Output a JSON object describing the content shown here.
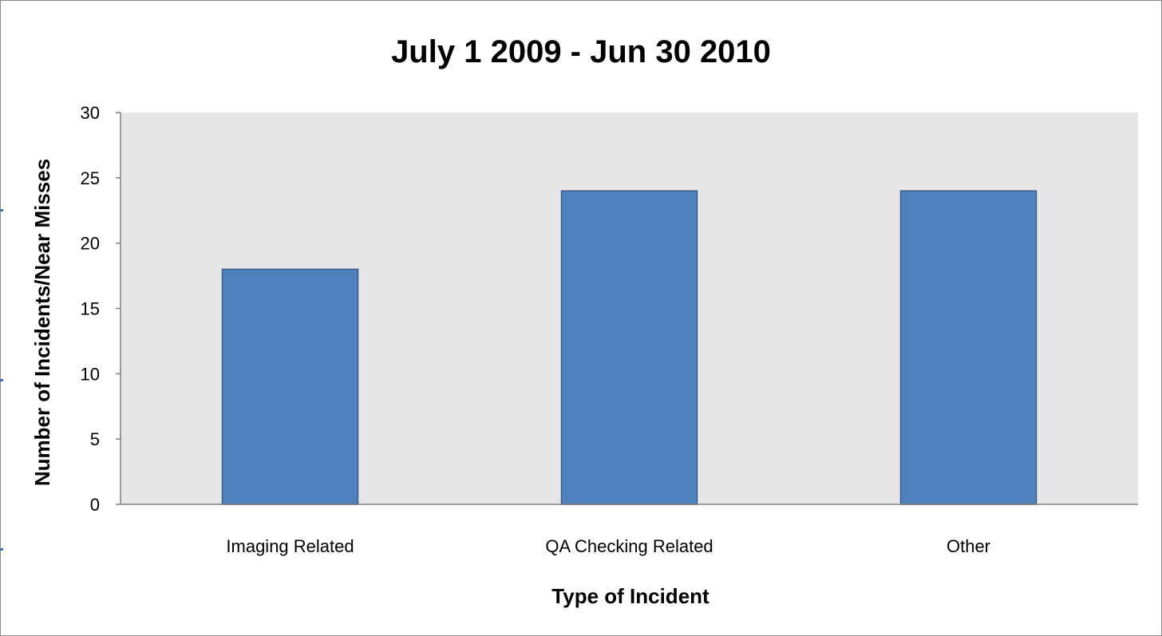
{
  "chart_data": {
    "type": "bar",
    "title": "July 1 2009 - Jun 30 2010",
    "xlabel": "Type of Incident",
    "ylabel": "Number of Incidents/Near Misses",
    "categories": [
      "Imaging Related",
      "QA Checking Related",
      "Other"
    ],
    "values": [
      18,
      24,
      24
    ],
    "ylim": [
      0,
      30
    ],
    "yticks": [
      0,
      5,
      10,
      15,
      20,
      25,
      30
    ],
    "grid": false,
    "legend": "none",
    "colors": {
      "bar_fill": "#4f81bd",
      "bar_stroke": "#385d8a",
      "plot_background": "#e6e6e6",
      "axis": "#808080"
    }
  }
}
